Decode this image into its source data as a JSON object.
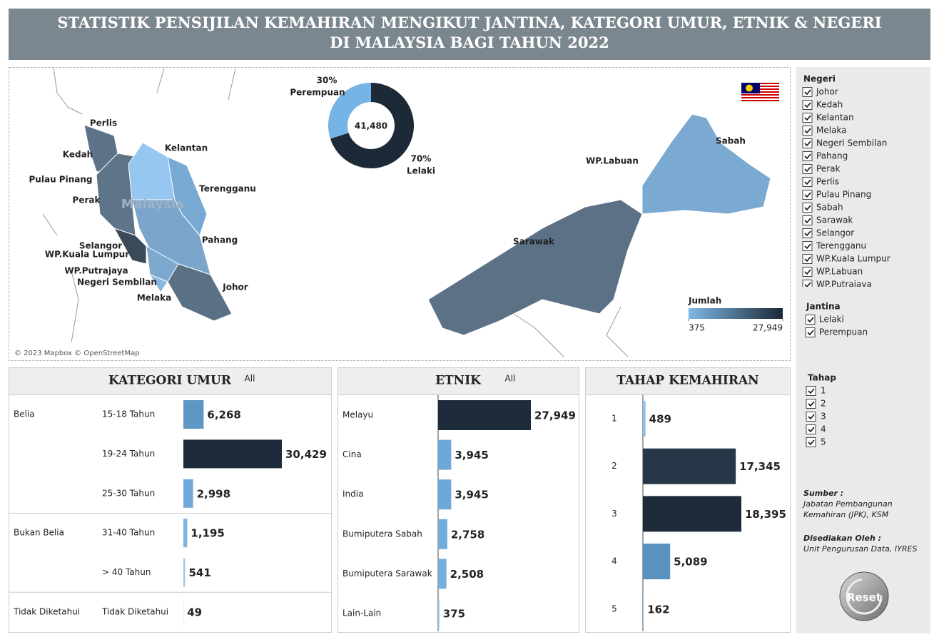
{
  "header": {
    "title": "STATISTIK PENSIJILAN KEMAHIRAN MENGIKUT JANTINA, KATEGORI UMUR, ETNIK & NEGERI DI MALAYSIA BAGI TAHUN 2022"
  },
  "chart_data": [
    {
      "type": "donut",
      "categories": [
        "Perempuan",
        "Lelaki"
      ],
      "values": [
        30,
        70
      ],
      "value_labels": [
        "30%",
        "70%"
      ],
      "colors": [
        "#76b4e6",
        "#1c2a38"
      ],
      "total": {
        "value": 41480,
        "label": "41,480"
      }
    },
    {
      "type": "bar",
      "title": "KATEGORI UMUR",
      "filter_label": "All",
      "group_labels": [
        "Belia",
        null,
        null,
        "Bukan Belia",
        null,
        "Tidak Diketahui"
      ],
      "categories": [
        "15-18 Tahun",
        "19-24 Tahun",
        "25-30 Tahun",
        "31-40 Tahun",
        "> 40 Tahun",
        "Tidak Diketahui"
      ],
      "values": [
        6268,
        30429,
        2998,
        1195,
        541,
        49
      ],
      "value_labels": [
        "6,268",
        "30,429",
        "2,998",
        "1,195",
        "541",
        "49"
      ],
      "colors": [
        "#5e97c3",
        "#1d2b3a",
        "#70a9d8",
        "#7ab4e2",
        "#a0c9ec",
        "#a6cdee"
      ]
    },
    {
      "type": "bar",
      "title": "ETNIK",
      "filter_label": "All",
      "categories": [
        "Melayu",
        "Cina",
        "India",
        "Bumiputera Sabah",
        "Bumiputera Sarawak",
        "Lain-Lain"
      ],
      "values": [
        27949,
        3945,
        3945,
        2758,
        2508,
        375
      ],
      "value_labels": [
        "27,949",
        "3,945",
        "3,945",
        "2,758",
        "2,508",
        "375"
      ],
      "colors": [
        "#1d2b3a",
        "#6ea8d7",
        "#6ea8d7",
        "#72acda",
        "#74aedc",
        "#8fbfe8"
      ]
    },
    {
      "type": "bar",
      "title": "TAHAP KEMAHIRAN",
      "categories": [
        "1",
        "2",
        "3",
        "4",
        "5"
      ],
      "values": [
        489,
        17345,
        18395,
        5089,
        162
      ],
      "value_labels": [
        "489",
        "17,345",
        "18,395",
        "5,089",
        "162"
      ],
      "colors": [
        "#8fbfe8",
        "#263747",
        "#1d2b3a",
        "#5a91bd",
        "#9fc8ec"
      ]
    },
    {
      "type": "map",
      "watermark": "Malaysia",
      "credit": "© 2023 Mapbox © OpenStreetMap",
      "state_labels": [
        "Perlis",
        "Kedah",
        "Kelantan",
        "Pulau Pinang",
        "Terengganu",
        "Perak",
        "Pahang",
        "Selangor",
        "WP.Kuala Lumpur",
        "WP.Putrajaya",
        "Negeri Sembilan",
        "Johor",
        "Melaka",
        "Sabah",
        "WP.Labuan",
        "Sarawak"
      ],
      "legend": {
        "title": "Jumlah",
        "colors": [
          "#7fb8e6",
          "#1b2836"
        ],
        "ticks": [
          375,
          {
            "value": 27949,
            "label": "27,949"
          }
        ]
      }
    }
  ],
  "filters": {
    "negeri": {
      "title": "Negeri",
      "items": [
        "Johor",
        "Kedah",
        "Kelantan",
        "Melaka",
        "Negeri Sembilan",
        "Pahang",
        "Perak",
        "Perlis",
        "Pulau Pinang",
        "Sabah",
        "Sarawak",
        "Selangor",
        "Terengganu",
        "WP.Kuala Lumpur",
        "WP.Labuan",
        "WP.Putrajaya"
      ]
    },
    "jantina": {
      "title": "Jantina",
      "items": [
        "Lelaki",
        "Perempuan"
      ]
    },
    "tahap": {
      "title": "Tahap",
      "items": [
        "1",
        "2",
        "3",
        "4",
        "5"
      ]
    }
  },
  "source": {
    "label": "Sumber :",
    "lines": [
      "Jabatan Pembangunan",
      "Kemahiran (JPK), KSM"
    ],
    "prepared_label": "Disediakan Oleh :",
    "prepared_by": "Unit Pengurusan Data, IYRES"
  },
  "reset": "Reset"
}
